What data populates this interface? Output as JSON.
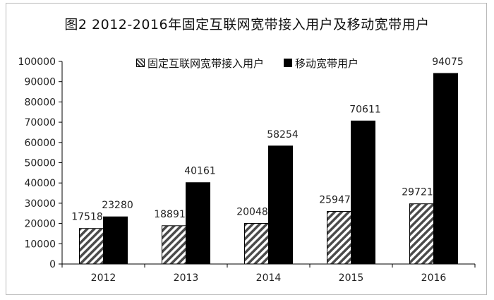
{
  "chart_data": {
    "type": "bar",
    "title": "图2  2012-2016年固定互联网宽带接入用户及移动宽带用户",
    "xlabel": "",
    "ylabel": "",
    "categories": [
      "2012",
      "2013",
      "2014",
      "2015",
      "2016"
    ],
    "ylim": [
      0,
      100000
    ],
    "yticks": [
      "0",
      "10000",
      "20000",
      "30000",
      "40000",
      "50000",
      "60000",
      "70000",
      "80000",
      "90000",
      "100000"
    ],
    "series": [
      {
        "name": "固定互联网宽带接入用户",
        "values": [
          17518,
          18891,
          20048,
          25947,
          29721
        ],
        "fill": "hatched"
      },
      {
        "name": "移动宽带用户",
        "values": [
          23280,
          40161,
          58254,
          70611,
          94075
        ],
        "fill": "#000000"
      }
    ],
    "legend_position": "top",
    "grid": false
  },
  "colors": {
    "solid_bar": "#000000",
    "hatch_dark": "#4a4a4a",
    "hatch_light": "#ffffff"
  }
}
